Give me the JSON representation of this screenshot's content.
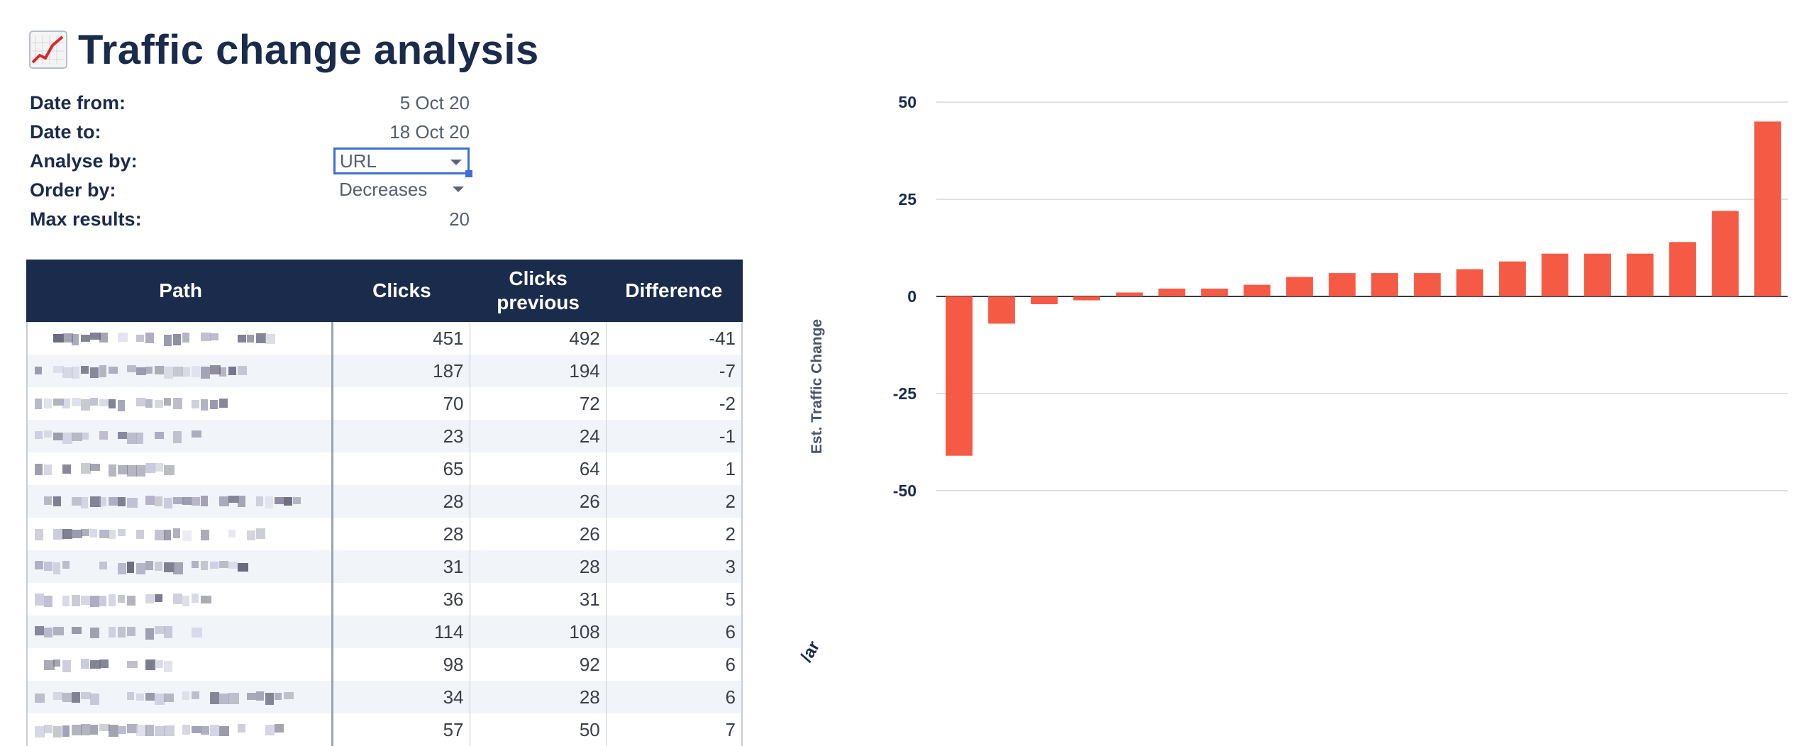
{
  "page": {
    "title": "Traffic change analysis",
    "title_icon": "chart-increasing-icon"
  },
  "params": {
    "date_from_label": "Date from:",
    "date_from_value": "5 Oct 20",
    "date_to_label": "Date to:",
    "date_to_value": "18 Oct 20",
    "analyse_by_label": "Analyse by:",
    "analyse_by_value": "URL",
    "order_by_label": "Order by:",
    "order_by_value": "Decreases",
    "max_results_label": "Max results:",
    "max_results_value": "20"
  },
  "table": {
    "headers": {
      "path": "Path",
      "clicks": "Clicks",
      "clicks_previous": "Clicks previous",
      "difference": "Difference"
    },
    "rows": [
      {
        "clicks": "451",
        "previous": "492",
        "difference": "-41"
      },
      {
        "clicks": "187",
        "previous": "194",
        "difference": "-7"
      },
      {
        "clicks": "70",
        "previous": "72",
        "difference": "-2"
      },
      {
        "clicks": "23",
        "previous": "24",
        "difference": "-1"
      },
      {
        "clicks": "65",
        "previous": "64",
        "difference": "1"
      },
      {
        "clicks": "28",
        "previous": "26",
        "difference": "2"
      },
      {
        "clicks": "28",
        "previous": "26",
        "difference": "2"
      },
      {
        "clicks": "31",
        "previous": "28",
        "difference": "3"
      },
      {
        "clicks": "36",
        "previous": "31",
        "difference": "5"
      },
      {
        "clicks": "114",
        "previous": "108",
        "difference": "6"
      },
      {
        "clicks": "98",
        "previous": "92",
        "difference": "6"
      },
      {
        "clicks": "34",
        "previous": "28",
        "difference": "6"
      },
      {
        "clicks": "57",
        "previous": "50",
        "difference": "7"
      }
    ]
  },
  "chart_data": {
    "type": "bar",
    "ylabel": "Est. Traffic Change",
    "xlabel_fragment": "/ar",
    "ylim": [
      -50,
      50
    ],
    "yticks": [
      50,
      25,
      0,
      -25,
      -50
    ],
    "grid": true,
    "bar_color": "#f55a45",
    "values": [
      -41,
      -7,
      -2,
      -1,
      1,
      2,
      2,
      3,
      5,
      6,
      6,
      6,
      7,
      9,
      11,
      11,
      11,
      14,
      22,
      45
    ]
  },
  "colors": {
    "header_bg": "#1a2b4c",
    "accent_select": "#3d6fd8",
    "bar": "#f55a45"
  }
}
